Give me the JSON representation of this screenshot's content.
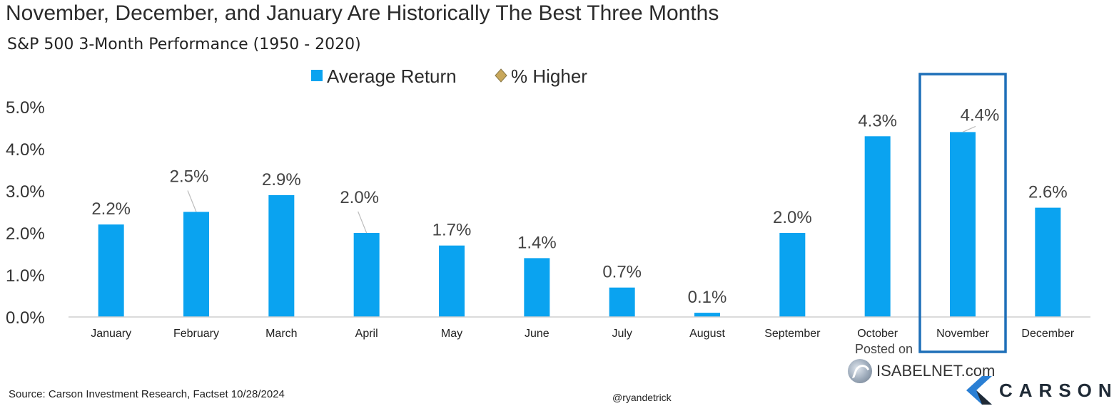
{
  "chart_data": {
    "type": "bar",
    "title": "November, December, and January Are Historically The Best Three Months",
    "subtitle": "S&P 500 3-Month Performance (1950 - 2020)",
    "categories": [
      "January",
      "February",
      "March",
      "April",
      "May",
      "June",
      "July",
      "August",
      "September",
      "October",
      "November",
      "December"
    ],
    "series": [
      {
        "name": "Average Return",
        "values": [
          2.2,
          2.5,
          2.9,
          2.0,
          1.7,
          1.4,
          0.7,
          0.1,
          2.0,
          4.3,
          4.4,
          2.6
        ],
        "color": "#0aa3f0"
      }
    ],
    "data_labels": [
      "2.2%",
      "2.5%",
      "2.9%",
      "2.0%",
      "1.7%",
      "1.4%",
      "0.7%",
      "0.1%",
      "2.0%",
      "4.3%",
      "4.4%",
      "2.6%"
    ],
    "legend": [
      {
        "label": "Average Return",
        "marker": "square",
        "color": "#0aa3f0"
      },
      {
        "label": "% Higher",
        "marker": "diamond",
        "color": "#c8a75a"
      }
    ],
    "legend_position": "top-center",
    "ylim": [
      0,
      5
    ],
    "yticks": [
      "0.0%",
      "1.0%",
      "2.0%",
      "3.0%",
      "4.0%",
      "5.0%"
    ],
    "xlabel": "",
    "ylabel": "",
    "grid": false,
    "highlight_category": "November",
    "highlight_color": "#1e6fb8"
  },
  "footer": {
    "source": "Source: Carson Investment Research, Factset 10/28/2024",
    "handle": "@ryandetrick",
    "posted_on": "Posted on",
    "watermark": "ISABELNET.com",
    "brand": "CARSON"
  }
}
